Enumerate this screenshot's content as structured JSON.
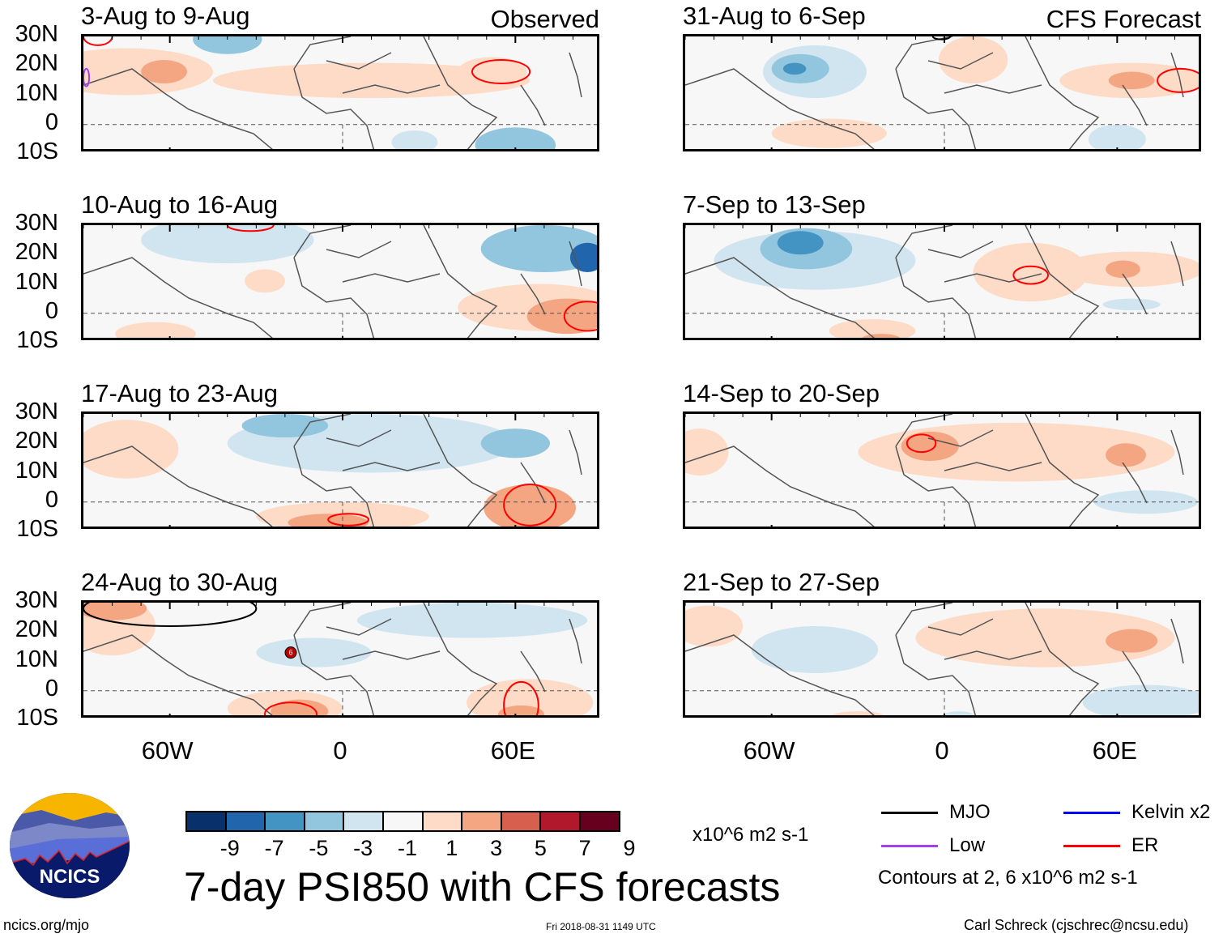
{
  "chart_data": {
    "type": "heatmap",
    "title": "7-day PSI850 with CFS forecasts",
    "variable": "850 hPa streamfunction anomaly",
    "units": "x10^6 m2 s-1",
    "x_ticks": [
      "60W",
      "0",
      "60E"
    ],
    "y_ticks": [
      "30N",
      "20N",
      "10N",
      "0",
      "10S"
    ],
    "lon_range": [
      -90,
      90
    ],
    "lat_range": [
      -10,
      30
    ],
    "colorbar": {
      "levels": [
        -9,
        -7,
        -5,
        -3,
        -1,
        1,
        3,
        5,
        7,
        9
      ],
      "colors": [
        "#08306b",
        "#2166ac",
        "#4393c3",
        "#92c5de",
        "#d1e5f0",
        "#f7f7f7",
        "#fddbc7",
        "#f4a582",
        "#d6604d",
        "#b2182b",
        "#67001f"
      ]
    },
    "contour_note": "Contours at 2, 6 x10^6 m2 s-1",
    "legend": [
      {
        "label": "MJO",
        "color": "#000000"
      },
      {
        "label": "Kelvin x2",
        "color": "#0000ff"
      },
      {
        "label": "Low",
        "color": "#a040f0"
      },
      {
        "label": "ER",
        "color": "#ff0000"
      }
    ],
    "panels": [
      {
        "period": "3-Aug to 9-Aug",
        "tag": "Observed",
        "column": "left",
        "row": 0,
        "anomalies": [
          {
            "lon": -75,
            "lat": 18,
            "rlon": 30,
            "rlat": 8,
            "value": 2
          },
          {
            "lon": -62,
            "lat": 18,
            "rlon": 8,
            "rlat": 4,
            "value": 4
          },
          {
            "lon": -40,
            "lat": 29,
            "rlon": 12,
            "rlat": 5,
            "value": -4
          },
          {
            "lon": 10,
            "lat": 15,
            "rlon": 55,
            "rlat": 6,
            "value": 2
          },
          {
            "lon": 52,
            "lat": 18,
            "rlon": 12,
            "rlat": 5,
            "value": 2
          },
          {
            "lon": 60,
            "lat": -7,
            "rlon": 14,
            "rlat": 6,
            "value": -4
          },
          {
            "lon": 25,
            "lat": -6,
            "rlon": 8,
            "rlat": 4,
            "value": -2
          }
        ],
        "contours": [
          {
            "type": "ER",
            "lon": -85,
            "lat": 30,
            "rlon": 5,
            "rlat": 3
          },
          {
            "type": "ER",
            "lon": 55,
            "lat": 18,
            "rlon": 10,
            "rlat": 4
          },
          {
            "type": "Low",
            "lon": -89,
            "lat": 16,
            "rlon": 1,
            "rlat": 3
          }
        ]
      },
      {
        "period": "10-Aug to 16-Aug",
        "tag": "",
        "column": "left",
        "row": 1,
        "anomalies": [
          {
            "lon": -40,
            "lat": 25,
            "rlon": 30,
            "rlat": 8,
            "value": -2
          },
          {
            "lon": 70,
            "lat": 22,
            "rlon": 22,
            "rlat": 8,
            "value": -4
          },
          {
            "lon": 85,
            "lat": 19,
            "rlon": 6,
            "rlat": 5,
            "value": -7
          },
          {
            "lon": -27,
            "lat": 11,
            "rlon": 7,
            "rlat": 4,
            "value": 2
          },
          {
            "lon": 68,
            "lat": 2,
            "rlon": 28,
            "rlat": 8,
            "value": 2
          },
          {
            "lon": 78,
            "lat": -1,
            "rlon": 14,
            "rlat": 6,
            "value": 4
          },
          {
            "lon": -65,
            "lat": -7,
            "rlon": 14,
            "rlat": 4,
            "value": 2
          }
        ],
        "contours": [
          {
            "type": "ER",
            "lon": -32,
            "lat": 30,
            "rlon": 8,
            "rlat": 2
          },
          {
            "type": "ER",
            "lon": 85,
            "lat": -1,
            "rlon": 8,
            "rlat": 5
          }
        ]
      },
      {
        "period": "17-Aug to 23-Aug",
        "tag": "",
        "column": "left",
        "row": 2,
        "anomalies": [
          {
            "lon": -75,
            "lat": 18,
            "rlon": 18,
            "rlat": 10,
            "value": 2
          },
          {
            "lon": 10,
            "lat": 20,
            "rlon": 50,
            "rlat": 10,
            "value": -2
          },
          {
            "lon": -20,
            "lat": 26,
            "rlon": 15,
            "rlat": 4,
            "value": -4
          },
          {
            "lon": 60,
            "lat": 20,
            "rlon": 12,
            "rlat": 5,
            "value": -4
          },
          {
            "lon": 0,
            "lat": -5,
            "rlon": 30,
            "rlat": 5,
            "value": 2
          },
          {
            "lon": -5,
            "lat": -7,
            "rlon": 14,
            "rlat": 3,
            "value": 4
          },
          {
            "lon": 65,
            "lat": -2,
            "rlon": 16,
            "rlat": 8,
            "value": 4
          }
        ],
        "contours": [
          {
            "type": "ER",
            "lon": 2,
            "lat": -6,
            "rlon": 7,
            "rlat": 2
          },
          {
            "type": "ER",
            "lon": 65,
            "lat": -1,
            "rlon": 9,
            "rlat": 7
          }
        ]
      },
      {
        "period": "24-Aug to 30-Aug",
        "tag": "",
        "column": "left",
        "row": 3,
        "anomalies": [
          {
            "lon": -80,
            "lat": 22,
            "rlon": 15,
            "rlat": 10,
            "value": 2
          },
          {
            "lon": -80,
            "lat": 28,
            "rlon": 12,
            "rlat": 4,
            "value": 4
          },
          {
            "lon": -10,
            "lat": 13,
            "rlon": 20,
            "rlat": 5,
            "value": -2
          },
          {
            "lon": 45,
            "lat": 24,
            "rlon": 40,
            "rlat": 6,
            "value": -2
          },
          {
            "lon": -20,
            "lat": -6,
            "rlon": 20,
            "rlat": 6,
            "value": 2
          },
          {
            "lon": -15,
            "lat": -7,
            "rlon": 10,
            "rlat": 4,
            "value": 4
          },
          {
            "lon": 65,
            "lat": -4,
            "rlon": 22,
            "rlat": 8,
            "value": 2
          },
          {
            "lon": 62,
            "lat": -8,
            "rlon": 8,
            "rlat": 3,
            "value": 4
          }
        ],
        "contours": [
          {
            "type": "MJO",
            "lon": -60,
            "lat": 28,
            "rlon": 30,
            "rlat": 6
          },
          {
            "type": "ER",
            "lon": -18,
            "lat": -8,
            "rlon": 9,
            "rlat": 4
          },
          {
            "type": "ER",
            "lon": 62,
            "lat": -5,
            "rlon": 6,
            "rlat": 8
          }
        ],
        "storm_symbol": {
          "lon": -18,
          "lat": 13,
          "label": "6"
        }
      },
      {
        "period": "31-Aug to 6-Sep",
        "tag": "CFS Forecast",
        "column": "right",
        "row": 0,
        "anomalies": [
          {
            "lon": -45,
            "lat": 18,
            "rlon": 18,
            "rlat": 9,
            "value": -2
          },
          {
            "lon": -50,
            "lat": 19,
            "rlon": 10,
            "rlat": 5,
            "value": -4
          },
          {
            "lon": -52,
            "lat": 19,
            "rlon": 4,
            "rlat": 2,
            "value": -6
          },
          {
            "lon": 10,
            "lat": 22,
            "rlon": 12,
            "rlat": 8,
            "value": 2
          },
          {
            "lon": 65,
            "lat": 15,
            "rlon": 25,
            "rlat": 6,
            "value": 2
          },
          {
            "lon": 65,
            "lat": 15,
            "rlon": 8,
            "rlat": 3,
            "value": 4
          },
          {
            "lon": -40,
            "lat": -3,
            "rlon": 20,
            "rlat": 5,
            "value": 2
          },
          {
            "lon": 60,
            "lat": -5,
            "rlon": 10,
            "rlat": 5,
            "value": -2
          }
        ],
        "contours": [
          {
            "type": "ER",
            "lon": 82,
            "lat": 15,
            "rlon": 8,
            "rlat": 4
          },
          {
            "type": "MJO",
            "lon": -1,
            "lat": 30,
            "rlon": 3,
            "rlat": 1
          }
        ]
      },
      {
        "period": "7-Sep to 13-Sep",
        "tag": "",
        "column": "right",
        "row": 1,
        "anomalies": [
          {
            "lon": -45,
            "lat": 18,
            "rlon": 35,
            "rlat": 10,
            "value": -2
          },
          {
            "lon": -48,
            "lat": 22,
            "rlon": 16,
            "rlat": 7,
            "value": -4
          },
          {
            "lon": -50,
            "lat": 24,
            "rlon": 8,
            "rlat": 4,
            "value": -6
          },
          {
            "lon": 30,
            "lat": 14,
            "rlon": 20,
            "rlat": 10,
            "value": 2
          },
          {
            "lon": 65,
            "lat": 15,
            "rlon": 25,
            "rlat": 6,
            "value": 2
          },
          {
            "lon": 62,
            "lat": 15,
            "rlon": 6,
            "rlat": 3,
            "value": 4
          },
          {
            "lon": -25,
            "lat": -6,
            "rlon": 15,
            "rlat": 4,
            "value": 2
          },
          {
            "lon": -22,
            "lat": -9,
            "rlon": 7,
            "rlat": 2,
            "value": 4
          },
          {
            "lon": 65,
            "lat": 3,
            "rlon": 10,
            "rlat": 2,
            "value": -2
          }
        ],
        "contours": [
          {
            "type": "ER",
            "lon": 30,
            "lat": 13,
            "rlon": 6,
            "rlat": 3
          }
        ]
      },
      {
        "period": "14-Sep to 20-Sep",
        "tag": "",
        "column": "right",
        "row": 2,
        "anomalies": [
          {
            "lon": 25,
            "lat": 17,
            "rlon": 55,
            "rlat": 10,
            "value": 2
          },
          {
            "lon": -85,
            "lat": 17,
            "rlon": 10,
            "rlat": 8,
            "value": 2
          },
          {
            "lon": -5,
            "lat": 19,
            "rlon": 10,
            "rlat": 5,
            "value": 4
          },
          {
            "lon": 63,
            "lat": 16,
            "rlon": 7,
            "rlat": 4,
            "value": 4
          },
          {
            "lon": 70,
            "lat": 0,
            "rlon": 18,
            "rlat": 4,
            "value": -2
          }
        ],
        "contours": [
          {
            "type": "ER",
            "lon": -8,
            "lat": 20,
            "rlon": 5,
            "rlat": 3
          }
        ]
      },
      {
        "period": "21-Sep to 27-Sep",
        "tag": "",
        "column": "right",
        "row": 3,
        "anomalies": [
          {
            "lon": -82,
            "lat": 22,
            "rlon": 12,
            "rlat": 7,
            "value": 2
          },
          {
            "lon": -45,
            "lat": 14,
            "rlon": 22,
            "rlat": 8,
            "value": -2
          },
          {
            "lon": 35,
            "lat": 18,
            "rlon": 45,
            "rlat": 10,
            "value": 2
          },
          {
            "lon": 65,
            "lat": 17,
            "rlon": 9,
            "rlat": 4,
            "value": 4
          },
          {
            "lon": 70,
            "lat": -4,
            "rlon": 22,
            "rlat": 6,
            "value": -2
          },
          {
            "lon": -30,
            "lat": -9,
            "rlon": 10,
            "rlat": 2,
            "value": 2
          },
          {
            "lon": 5,
            "lat": -9,
            "rlon": 6,
            "rlat": 2,
            "value": -2
          }
        ],
        "contours": []
      }
    ]
  },
  "colorbar": {
    "tick_labels": [
      "-9",
      "-7",
      "-5",
      "-3",
      "-1",
      "1",
      "3",
      "5",
      "7",
      "9"
    ],
    "units": "x10^6 m2 s-1"
  },
  "legend": {
    "mjo": "MJO",
    "kelvin": "Kelvin x2",
    "low": "Low",
    "er": "ER",
    "contours": "Contours at 2, 6 x10^6 m2 s-1"
  },
  "footer": {
    "website": "ncics.org/mjo",
    "timestamp": "Fri 2018-08-31 1149 UTC",
    "author": "Carl Schreck (cjschrec@ncsu.edu)",
    "logo_text": "NCICS"
  },
  "main_title": "7-day PSI850 with CFS forecasts"
}
